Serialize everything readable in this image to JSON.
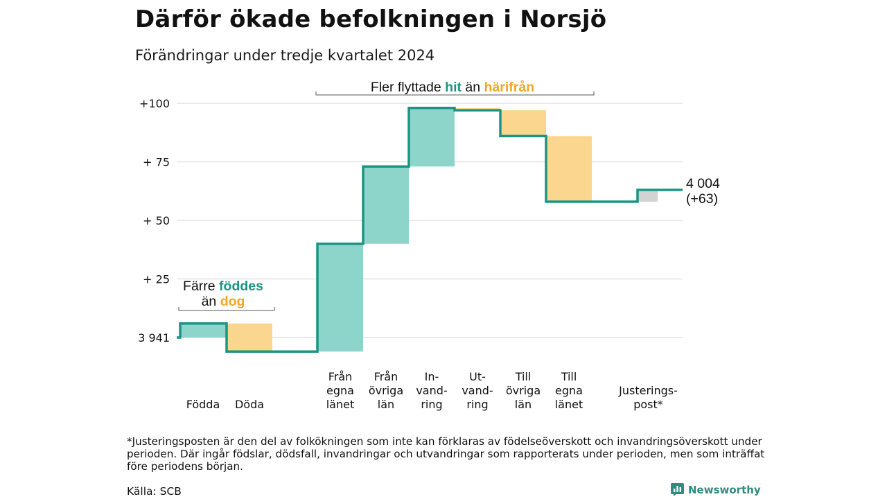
{
  "title": "Därför ökade befolkningen i Norsjö",
  "subtitle": "Förändringar under tredje kvartalet 2024",
  "colors": {
    "teal_line": "#1a9583",
    "teal_fill": "#8dd5cb",
    "orange_fill": "#fbd68e",
    "orange_text": "#f5a623",
    "teal_text": "#1a9583",
    "adjust_fill": "#d3d3d3",
    "grid": "#dddddd"
  },
  "chart_data": {
    "type": "waterfall",
    "base_value": 3941,
    "end_value": 4004,
    "ylim": [
      -6,
      100
    ],
    "y_ticks": [
      {
        "value": 0,
        "label": "3 941"
      },
      {
        "value": 25,
        "label": "+ 25"
      },
      {
        "value": 50,
        "label": "+ 50"
      },
      {
        "value": 75,
        "label": "+ 75"
      },
      {
        "value": 100,
        "label": "+100"
      }
    ],
    "steps": [
      {
        "label": [
          "Födda"
        ],
        "start": 0,
        "end": 6,
        "kind": "increase"
      },
      {
        "label": [
          "Döda"
        ],
        "start": 6,
        "end": -6,
        "kind": "decrease"
      },
      {
        "label": [
          "Från",
          "egna",
          "länet"
        ],
        "start": -6,
        "end": 40,
        "kind": "increase"
      },
      {
        "label": [
          "Från",
          "övriga",
          "län"
        ],
        "start": 40,
        "end": 73,
        "kind": "increase"
      },
      {
        "label": [
          "In-",
          "vand-",
          "ring"
        ],
        "start": 73,
        "end": 98,
        "kind": "increase"
      },
      {
        "label": [
          "Ut-",
          "vand-",
          "ring"
        ],
        "start": 98,
        "end": 97,
        "kind": "decrease"
      },
      {
        "label": [
          "Till",
          "övriga",
          "län"
        ],
        "start": 97,
        "end": 86,
        "kind": "decrease"
      },
      {
        "label": [
          "Till",
          "egna",
          "länet"
        ],
        "start": 86,
        "end": 58,
        "kind": "decrease"
      },
      {
        "label": [
          "Justerings-",
          "post*"
        ],
        "start": 58,
        "end": 63,
        "kind": "adjustment"
      }
    ],
    "end_label": [
      "4 004",
      "(+63)"
    ],
    "annotations": [
      {
        "id": "migration",
        "parts": [
          {
            "text": "Fler flyttade ",
            "color": "dark",
            "bold": false
          },
          {
            "text": "hit",
            "color": "teal",
            "bold": true
          },
          {
            "text": " än ",
            "color": "dark",
            "bold": false
          },
          {
            "text": "härifrån",
            "color": "orange",
            "bold": true
          }
        ]
      },
      {
        "id": "births",
        "lines": [
          [
            {
              "text": "Färre ",
              "color": "dark",
              "bold": false
            },
            {
              "text": "föddes",
              "color": "teal",
              "bold": true
            }
          ],
          [
            {
              "text": "än ",
              "color": "dark",
              "bold": false
            },
            {
              "text": "dog",
              "color": "orange",
              "bold": true
            }
          ]
        ]
      }
    ]
  },
  "footnote": "*Justeringsposten är den del av folkökningen som inte kan förklaras av födelseöverskott och invandringsöverskott under perioden. Där ingår födslar, dödsfall, invandringar och utvandringar som rapporterats under perioden, men som inträffat före periodens början.",
  "source": "Källa: SCB",
  "logo": {
    "text": "Newsworthy",
    "icon": "bar-chart-logo-icon"
  }
}
